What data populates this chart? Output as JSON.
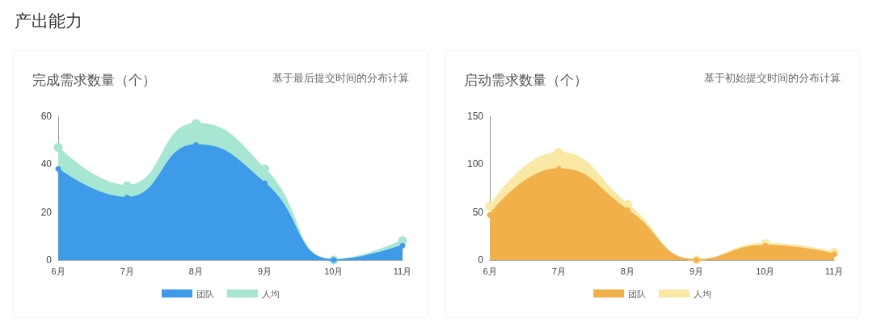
{
  "chart_data": [
    {
      "type": "other",
      "title": "产出能力"
    },
    {
      "type": "area",
      "title": "完成需求数量（个）",
      "subtitle": "基于最后提交时间的分布计算",
      "categories": [
        "6月",
        "7月",
        "8月",
        "9月",
        "10月",
        "11月"
      ],
      "series": [
        {
          "name": "团队",
          "color": "#3d9be9",
          "values": [
            38,
            26,
            48,
            32,
            0,
            6
          ]
        },
        {
          "name": "人均",
          "color": "#a8e6d4",
          "values": [
            47,
            31,
            57,
            38,
            0,
            8
          ]
        }
      ],
      "ylim": [
        0,
        60
      ],
      "yticks": [
        0,
        20,
        40,
        60
      ],
      "grid": false,
      "legend": "bottom",
      "marker": "circle"
    },
    {
      "type": "area",
      "title": "启动需求数量（个）",
      "subtitle": "基于初始提交时间的分布计算",
      "categories": [
        "6月",
        "7月",
        "8月",
        "9月",
        "10月",
        "11月"
      ],
      "series": [
        {
          "name": "团队",
          "color": "#f2b04a",
          "values": [
            47,
            95,
            52,
            0,
            15,
            6
          ]
        },
        {
          "name": "人均",
          "color": "#f9e9a5",
          "values": [
            56,
            112,
            58,
            0,
            17,
            8
          ]
        }
      ],
      "ylim": [
        0,
        150
      ],
      "yticks": [
        0,
        50,
        100,
        150
      ],
      "grid": false,
      "legend": "bottom",
      "marker": "circle"
    }
  ]
}
